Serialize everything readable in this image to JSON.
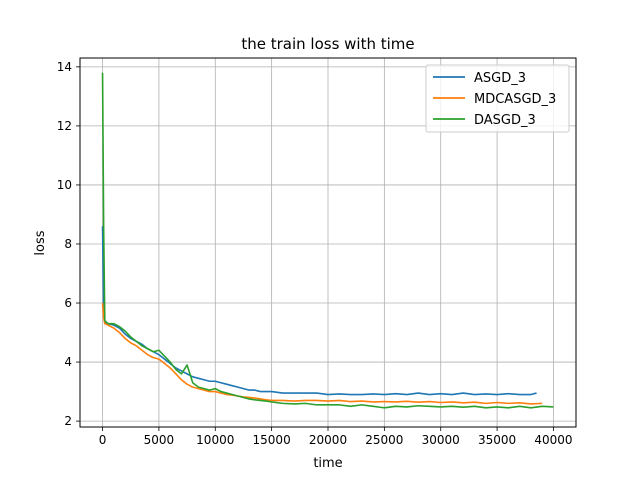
{
  "chart_data": {
    "type": "line",
    "title": "the train loss with time",
    "xlabel": "time",
    "ylabel": "loss",
    "xlim": [
      -2000,
      42000
    ],
    "ylim": [
      1.8,
      14.3
    ],
    "xticks": [
      0,
      5000,
      10000,
      15000,
      20000,
      25000,
      30000,
      35000,
      40000
    ],
    "yticks": [
      2,
      4,
      6,
      8,
      10,
      12,
      14
    ],
    "grid": true,
    "legend_position": "top-right",
    "series": [
      {
        "name": "ASGD_3",
        "color": "#1f77b4",
        "x": [
          0,
          100,
          200,
          500,
          1000,
          1500,
          2000,
          2500,
          3000,
          3500,
          4000,
          4500,
          5000,
          5500,
          6000,
          6500,
          7000,
          7500,
          8000,
          8500,
          9000,
          9500,
          10000,
          10500,
          11000,
          11500,
          12000,
          12500,
          13000,
          13500,
          14000,
          14500,
          15000,
          16000,
          17000,
          18000,
          19000,
          20000,
          21000,
          22000,
          23000,
          24000,
          25000,
          26000,
          27000,
          28000,
          29000,
          30000,
          31000,
          32000,
          33000,
          34000,
          35000,
          36000,
          37000,
          38000,
          38500
        ],
        "values": [
          8.6,
          5.7,
          5.35,
          5.3,
          5.25,
          5.15,
          4.95,
          4.8,
          4.7,
          4.6,
          4.45,
          4.35,
          4.25,
          4.1,
          3.95,
          3.8,
          3.7,
          3.6,
          3.5,
          3.45,
          3.4,
          3.35,
          3.35,
          3.3,
          3.25,
          3.2,
          3.15,
          3.1,
          3.05,
          3.05,
          3.0,
          3.0,
          3.0,
          2.95,
          2.95,
          2.95,
          2.95,
          2.9,
          2.92,
          2.9,
          2.9,
          2.92,
          2.9,
          2.93,
          2.9,
          2.95,
          2.9,
          2.93,
          2.9,
          2.95,
          2.9,
          2.92,
          2.9,
          2.93,
          2.9,
          2.9,
          2.95
        ]
      },
      {
        "name": "MDCASGD_3",
        "color": "#ff7f0e",
        "x": [
          0,
          100,
          200,
          500,
          1000,
          1500,
          2000,
          2500,
          3000,
          3500,
          4000,
          4500,
          5000,
          5500,
          6000,
          6500,
          7000,
          7500,
          8000,
          8500,
          9000,
          9500,
          10000,
          10500,
          11000,
          11500,
          12000,
          12500,
          13000,
          13500,
          14000,
          14500,
          15000,
          16000,
          17000,
          18000,
          19000,
          20000,
          21000,
          22000,
          23000,
          24000,
          25000,
          26000,
          27000,
          28000,
          29000,
          30000,
          31000,
          32000,
          33000,
          34000,
          35000,
          36000,
          37000,
          38000,
          39000
        ],
        "values": [
          6.0,
          5.5,
          5.3,
          5.25,
          5.15,
          5.0,
          4.8,
          4.65,
          4.55,
          4.4,
          4.25,
          4.15,
          4.1,
          3.95,
          3.8,
          3.6,
          3.4,
          3.25,
          3.15,
          3.1,
          3.05,
          3.0,
          3.0,
          2.95,
          2.9,
          2.88,
          2.85,
          2.82,
          2.8,
          2.78,
          2.75,
          2.72,
          2.7,
          2.7,
          2.68,
          2.7,
          2.7,
          2.68,
          2.7,
          2.66,
          2.68,
          2.65,
          2.66,
          2.65,
          2.67,
          2.64,
          2.66,
          2.63,
          2.65,
          2.62,
          2.64,
          2.6,
          2.63,
          2.6,
          2.62,
          2.58,
          2.6
        ]
      },
      {
        "name": "DASGD_3",
        "color": "#2ca02c",
        "x": [
          0,
          100,
          200,
          500,
          1000,
          1500,
          2000,
          2500,
          3000,
          3500,
          4000,
          4500,
          5000,
          5500,
          6000,
          6500,
          7000,
          7500,
          8000,
          8500,
          9000,
          9500,
          10000,
          10500,
          11000,
          11500,
          12000,
          12500,
          13000,
          13500,
          14000,
          14500,
          15000,
          16000,
          17000,
          18000,
          19000,
          20000,
          21000,
          22000,
          23000,
          24000,
          25000,
          26000,
          27000,
          28000,
          29000,
          30000,
          31000,
          32000,
          33000,
          34000,
          35000,
          36000,
          37000,
          38000,
          39000,
          40000
        ],
        "values": [
          13.8,
          8.5,
          5.4,
          5.3,
          5.3,
          5.2,
          5.05,
          4.85,
          4.7,
          4.55,
          4.45,
          4.35,
          4.4,
          4.2,
          4.0,
          3.75,
          3.6,
          3.9,
          3.3,
          3.15,
          3.1,
          3.05,
          3.1,
          3.0,
          2.95,
          2.9,
          2.85,
          2.8,
          2.75,
          2.72,
          2.7,
          2.68,
          2.65,
          2.6,
          2.58,
          2.6,
          2.55,
          2.55,
          2.55,
          2.5,
          2.55,
          2.5,
          2.45,
          2.5,
          2.48,
          2.52,
          2.5,
          2.48,
          2.5,
          2.47,
          2.5,
          2.45,
          2.48,
          2.45,
          2.5,
          2.45,
          2.5,
          2.48
        ]
      }
    ]
  }
}
